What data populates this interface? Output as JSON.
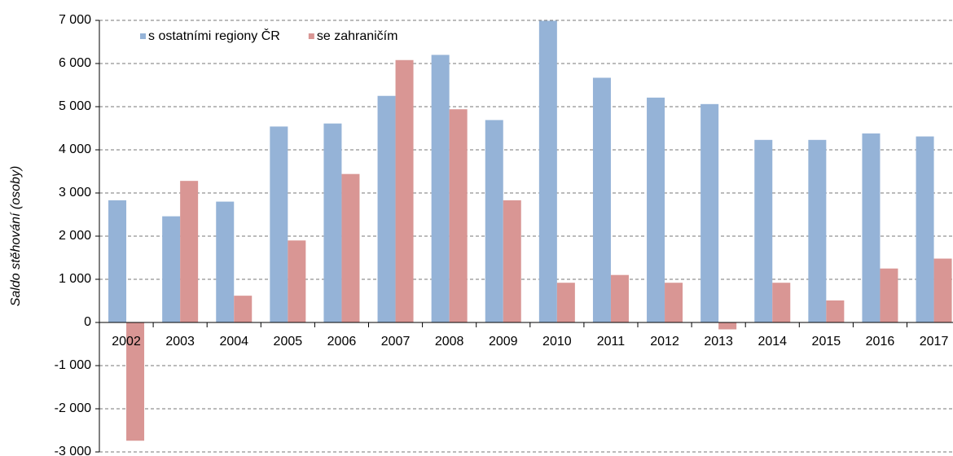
{
  "chart_data": {
    "type": "bar",
    "y_label": "Saldo stěhování (osoby)",
    "categories": [
      "2002",
      "2003",
      "2004",
      "2005",
      "2006",
      "2007",
      "2008",
      "2009",
      "2010",
      "2011",
      "2012",
      "2013",
      "2014",
      "2015",
      "2016",
      "2017"
    ],
    "series": [
      {
        "name": "s ostatními regiony ČR",
        "color": "#95b3d7",
        "values": [
          2830,
          2460,
          2800,
          4540,
          4610,
          5250,
          6200,
          4690,
          6990,
          5670,
          5210,
          5060,
          4230,
          4230,
          4380,
          4310
        ]
      },
      {
        "name": "se zahraničím",
        "color": "#d99694",
        "values": [
          -2740,
          3280,
          620,
          1900,
          3440,
          6080,
          4940,
          2830,
          920,
          1100,
          920,
          -160,
          920,
          510,
          1250,
          1480
        ]
      }
    ],
    "ylim": [
      -3000,
      7000
    ],
    "yticks": [
      {
        "value": -3000,
        "label": "-3 000"
      },
      {
        "value": -2000,
        "label": "-2 000"
      },
      {
        "value": -1000,
        "label": "-1 000"
      },
      0,
      {
        "value": 1000,
        "label": "1 000"
      },
      {
        "value": 2000,
        "label": "2 000"
      },
      {
        "value": 3000,
        "label": "3 000"
      },
      {
        "value": 4000,
        "label": "4 000"
      },
      {
        "value": 5000,
        "label": "5 000"
      },
      {
        "value": 6000,
        "label": "6 000"
      },
      {
        "value": 7000,
        "label": "7 000"
      }
    ],
    "grid": true,
    "legend": "top-left"
  }
}
